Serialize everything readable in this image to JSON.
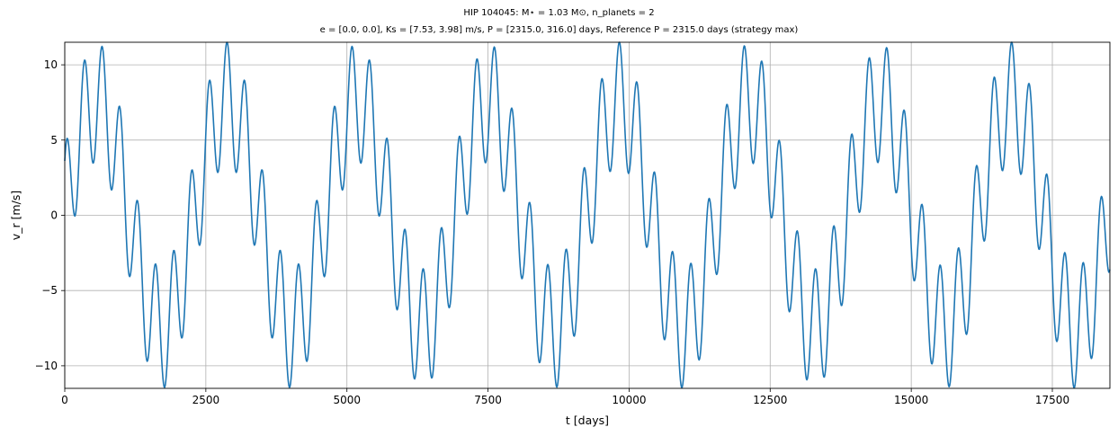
{
  "chart_data": {
    "type": "line",
    "title": "HIP 104045: M⋆ = 1.03 M⊙, n_planets = 2",
    "subtitle": "e = [0.0, 0.0], Ks = [7.53, 3.98] m/s, P = [2315.0, 316.0] days, Reference P = 2315.0 days (strategy max)",
    "xlabel": "t [days]",
    "ylabel": "v_r [m/s]",
    "xlim": [
      0,
      18520
    ],
    "ylim": [
      -11.5,
      11.5
    ],
    "x_ticks": [
      0,
      2500,
      5000,
      7500,
      10000,
      12500,
      15000,
      17500
    ],
    "x_tick_labels": [
      "0",
      "2500",
      "5000",
      "7500",
      "10000",
      "12500",
      "15000",
      "17500"
    ],
    "y_ticks": [
      -10,
      -5,
      0,
      5,
      10
    ],
    "y_tick_labels": [
      "−10",
      "−5",
      "0",
      "5",
      "10"
    ],
    "grid": true,
    "legend": "none",
    "series": [
      {
        "model": "sum of two sinusoids",
        "periods": [
          2315.0,
          316.0
        ],
        "semi_amplitudes": [
          7.53,
          3.98
        ],
        "x_step": 10,
        "color": "#1f77b4"
      }
    ]
  }
}
